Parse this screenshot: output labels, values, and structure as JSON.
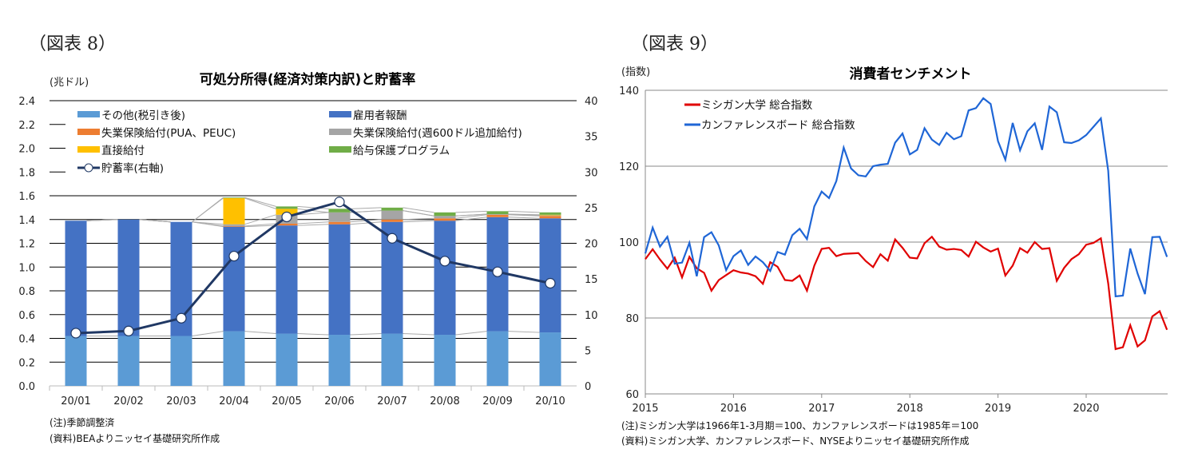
{
  "left": {
    "figure_label": "（図表 8）",
    "notes": [
      "(注)季節調整済",
      "(資料)BEAよりニッセイ基礎研究所作成"
    ]
  },
  "right": {
    "figure_label": "（図表 9）",
    "notes": [
      "(注)ミシガン大学は1966年1-3月期＝100、カンファレンスボードは1985年＝100",
      "(資料)ミシガン大学、カンファレンスボード、NYSEよりニッセイ基礎研究所作成"
    ]
  },
  "chart_data": [
    {
      "type": "bar",
      "stacked": true,
      "title": "可処分所得(経済対策内訳)と貯蓄率",
      "ylabel": "(兆ドル)",
      "ylim": [
        0,
        2.4
      ],
      "y_ticks": [
        "0.0",
        "0.2",
        "0.4",
        "0.6",
        "0.8",
        "1.0",
        "1.2",
        "1.4",
        "1.6",
        "1.8",
        "2.0",
        "2.2",
        "2.4"
      ],
      "y2lim": [
        0,
        40
      ],
      "y2_ticks": [
        "0",
        "5",
        "10",
        "15",
        "20",
        "25",
        "30",
        "35",
        "40"
      ],
      "grid": true,
      "legend_position": "top-left",
      "categories": [
        "20/01",
        "20/02",
        "20/03",
        "20/04",
        "20/05",
        "20/06",
        "20/07",
        "20/08",
        "20/09",
        "20/10"
      ],
      "series": [
        {
          "name": "その他(税引き後)",
          "color": "#5b9bd5",
          "values": [
            0.42,
            0.42,
            0.42,
            0.46,
            0.44,
            0.43,
            0.44,
            0.43,
            0.46,
            0.45
          ]
        },
        {
          "name": "雇用者報酬",
          "color": "#4472c4",
          "values": [
            0.97,
            0.98,
            0.96,
            0.88,
            0.91,
            0.93,
            0.94,
            0.96,
            0.96,
            0.96
          ]
        },
        {
          "name": "失業保険給付(PUA、PEUC)",
          "color": "#ed7d31",
          "values": [
            0,
            0,
            0,
            0.005,
            0.015,
            0.02,
            0.02,
            0.02,
            0.02,
            0.02
          ]
        },
        {
          "name": "失業保険給付(週600ドル追加給付)",
          "color": "#a5a5a5",
          "values": [
            0,
            0,
            0,
            0.015,
            0.075,
            0.08,
            0.075,
            0.02,
            0.005,
            0.005
          ]
        },
        {
          "name": "直接給付",
          "color": "#ffc000",
          "values": [
            0,
            0,
            0,
            0.22,
            0.05,
            0,
            0,
            0,
            0,
            0.005
          ]
        },
        {
          "name": "給与保護プログラム",
          "color": "#70ad47",
          "values": [
            0,
            0,
            0,
            0.005,
            0.02,
            0.03,
            0.025,
            0.03,
            0.025,
            0.02
          ]
        }
      ],
      "line": {
        "name": "貯蓄率(右軸)",
        "axis": "right",
        "color": "#203864",
        "values": [
          7.4,
          7.7,
          9.5,
          18.2,
          23.7,
          25.8,
          20.7,
          17.5,
          16.0,
          14.4
        ]
      }
    },
    {
      "type": "line",
      "title": "消費者センチメント",
      "ylabel": "(指数)",
      "ylim": [
        60,
        140
      ],
      "y_ticks": [
        "60",
        "80",
        "100",
        "120",
        "140"
      ],
      "x_ticks": [
        "2015",
        "2016",
        "2017",
        "2018",
        "2019",
        "2020"
      ],
      "xlim": [
        "2015-01",
        "2020-11"
      ],
      "grid": true,
      "legend_position": "top-left",
      "x_start": "2015-01",
      "series": [
        {
          "name": "ミシガン大学 総合指数",
          "color": "#e00000",
          "values": [
            95.5,
            98.1,
            95.4,
            93.0,
            95.9,
            90.7,
            96.1,
            93.1,
            91.9,
            87.2,
            90.0,
            91.3,
            92.6,
            92.0,
            91.7,
            91.0,
            89.0,
            94.7,
            93.5,
            90.0,
            89.8,
            91.2,
            87.2,
            93.8,
            98.2,
            98.5,
            96.3,
            96.9,
            97.0,
            97.1,
            95.0,
            93.4,
            96.8,
            95.1,
            100.7,
            98.5,
            95.9,
            95.7,
            99.7,
            101.4,
            98.8,
            98.0,
            98.2,
            97.9,
            96.2,
            100.1,
            98.6,
            97.5,
            98.3,
            91.2,
            93.8,
            98.4,
            97.2,
            100.0,
            98.2,
            98.4,
            89.8,
            93.2,
            95.5,
            96.8,
            99.3,
            99.8,
            101.0,
            89.1,
            71.8,
            72.3,
            78.1,
            72.5,
            74.1,
            80.4,
            81.8,
            76.9
          ]
        },
        {
          "name": "カンファレンスボード 総合指数",
          "color": "#1f66d6",
          "values": [
            97.0,
            103.8,
            98.8,
            101.4,
            94.3,
            94.6,
            99.8,
            91.0,
            101.3,
            102.6,
            99.1,
            92.6,
            96.3,
            97.8,
            94.0,
            96.2,
            94.7,
            92.4,
            97.4,
            96.7,
            101.8,
            103.5,
            100.8,
            109.4,
            113.3,
            111.6,
            116.1,
            124.9,
            119.4,
            117.6,
            117.3,
            120.0,
            120.4,
            120.6,
            126.2,
            128.6,
            123.1,
            124.3,
            130.0,
            127.0,
            125.6,
            128.8,
            127.1,
            127.9,
            134.7,
            135.3,
            137.9,
            136.4,
            126.6,
            121.7,
            131.4,
            124.2,
            129.2,
            131.3,
            124.3,
            135.7,
            134.2,
            126.3,
            126.1,
            126.8,
            128.2,
            130.4,
            132.6,
            118.8,
            85.7,
            85.9,
            98.3,
            91.7,
            86.3,
            101.3,
            101.4,
            96.1
          ]
        }
      ]
    }
  ]
}
